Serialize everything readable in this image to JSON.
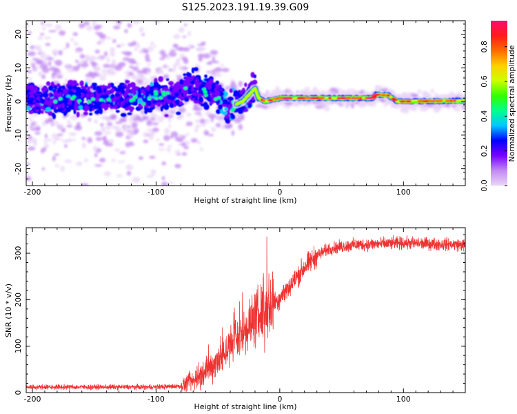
{
  "figure": {
    "title": "S125.2023.191.19.39.G09"
  },
  "chart_data": [
    {
      "type": "heatmap",
      "name": "spectrogram",
      "xlabel": "Height of straight line (km)",
      "ylabel": "Frequency (Hz)",
      "xlim": [
        -205,
        150
      ],
      "ylim": [
        -25,
        24
      ],
      "xticks": [
        -200,
        -100,
        0,
        100
      ],
      "yticks": [
        -20,
        -10,
        0,
        10,
        20
      ],
      "colorbar": {
        "label": "Normalized spectral amplitude",
        "range": [
          0.0,
          0.95
        ],
        "ticks": [
          0.0,
          0.2,
          0.4,
          0.6,
          0.8
        ],
        "tick_labels": [
          "0.0",
          "0.2",
          "0.4",
          "0.6",
          "0.8"
        ],
        "colors": [
          "#ead6f7",
          "#c28af2",
          "#7a00ff",
          "#0000ff",
          "#00c8ff",
          "#00ff8c",
          "#33ff00",
          "#ccff00",
          "#ffd000",
          "#ff6a00",
          "#ff1a1a",
          "#ff0a70"
        ]
      },
      "frequency_track": [
        {
          "x": -205,
          "f": 0.5
        },
        {
          "x": -80,
          "f": 1.5
        },
        {
          "x": -75,
          "f": 5
        },
        {
          "x": -65,
          "f": 4
        },
        {
          "x": -55,
          "f": 3
        },
        {
          "x": -48,
          "f": 1
        },
        {
          "x": -42,
          "f": -2
        },
        {
          "x": -36,
          "f": -1
        },
        {
          "x": -30,
          "f": 0
        },
        {
          "x": -25,
          "f": 2
        },
        {
          "x": -20,
          "f": 4
        },
        {
          "x": -17,
          "f": 1
        },
        {
          "x": -12,
          "f": 0
        },
        {
          "x": 0,
          "f": 1
        },
        {
          "x": 75,
          "f": 1
        },
        {
          "x": 78,
          "f": 2
        },
        {
          "x": 88,
          "f": 1.8
        },
        {
          "x": 95,
          "f": 0
        },
        {
          "x": 150,
          "f": 0.2
        }
      ]
    },
    {
      "type": "line",
      "name": "snr",
      "xlabel": "Height of straight line (km)",
      "ylabel": "SNR (10 * v/v)",
      "xlim": [
        -205,
        150
      ],
      "ylim": [
        0,
        355
      ],
      "xticks": [
        -200,
        -100,
        0,
        100
      ],
      "yticks": [
        0,
        100,
        200,
        300
      ],
      "series": [
        {
          "name": "SNR",
          "color": "#ee3333",
          "trend": [
            {
              "x": -205,
              "y": 12
            },
            {
              "x": -100,
              "y": 12
            },
            {
              "x": -80,
              "y": 14
            },
            {
              "x": -70,
              "y": 25
            },
            {
              "x": -60,
              "y": 45
            },
            {
              "x": -50,
              "y": 70
            },
            {
              "x": -40,
              "y": 100
            },
            {
              "x": -30,
              "y": 130
            },
            {
              "x": -20,
              "y": 160
            },
            {
              "x": -10,
              "y": 180
            },
            {
              "x": 0,
              "y": 205
            },
            {
              "x": 10,
              "y": 235
            },
            {
              "x": 20,
              "y": 270
            },
            {
              "x": 30,
              "y": 295
            },
            {
              "x": 40,
              "y": 310
            },
            {
              "x": 60,
              "y": 318
            },
            {
              "x": 100,
              "y": 322
            },
            {
              "x": 150,
              "y": 318
            }
          ]
        }
      ]
    }
  ]
}
